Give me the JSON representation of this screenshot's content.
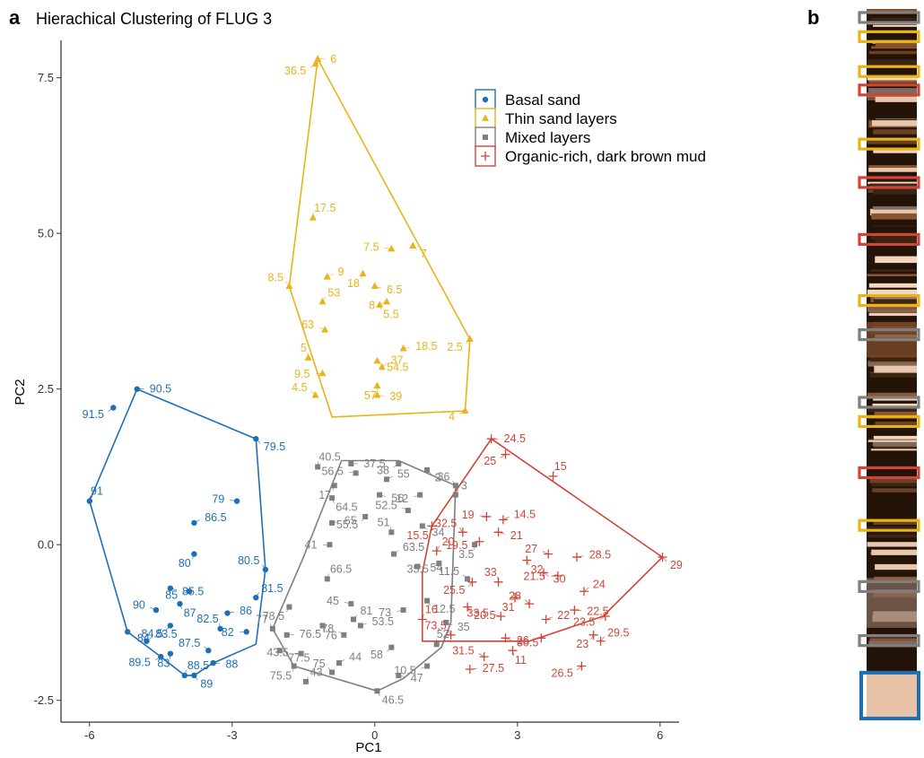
{
  "panel_a_letter": "a",
  "panel_b_letter": "b",
  "chart_data": {
    "type": "scatter",
    "title": "Hierachical Clustering of FLUG 3",
    "xlabel": "PC1",
    "ylabel": "PC2",
    "xlim": [
      -6.6,
      6.4
    ],
    "ylim": [
      -2.85,
      8.1
    ],
    "xticks": [
      -6,
      -3,
      0,
      3,
      6
    ],
    "xtick_labels": [
      "-6",
      "-3",
      "0",
      "3",
      "6"
    ],
    "yticks": [
      -2.5,
      0,
      2.5,
      5,
      7.5
    ],
    "ytick_labels": [
      "-2.5",
      "0.0",
      "2.5",
      "5.0",
      "7.5"
    ],
    "grid": false,
    "legend_position": "top-right",
    "series": [
      {
        "name": "Basal sand",
        "color": "#1f6fb5",
        "marker": "circle",
        "hull": [
          [
            -6.0,
            0.7
          ],
          [
            -5.0,
            2.5
          ],
          [
            -2.5,
            1.7
          ],
          [
            -2.3,
            -0.4
          ],
          [
            -2.5,
            -1.6
          ],
          [
            -3.4,
            -1.9
          ],
          [
            -3.8,
            -2.1
          ],
          [
            -4.0,
            -2.1
          ],
          [
            -4.5,
            -1.8
          ],
          [
            -5.2,
            -1.4
          ]
        ],
        "points": [
          {
            "label": "90.5",
            "x": -5.0,
            "y": 2.5
          },
          {
            "label": "91.5",
            "x": -5.5,
            "y": 2.2
          },
          {
            "label": "91",
            "x": -6.0,
            "y": 0.7
          },
          {
            "label": "79.5",
            "x": -2.5,
            "y": 1.7
          },
          {
            "label": "79",
            "x": -2.9,
            "y": 0.7
          },
          {
            "label": "86.5",
            "x": -3.8,
            "y": 0.35
          },
          {
            "label": "80",
            "x": -3.8,
            "y": -0.15
          },
          {
            "label": "80.5",
            "x": -2.3,
            "y": -0.4
          },
          {
            "label": "85.5",
            "x": -4.3,
            "y": -0.7
          },
          {
            "label": "85",
            "x": -3.9,
            "y": -0.75
          },
          {
            "label": "81.5",
            "x": -2.5,
            "y": -0.85
          },
          {
            "label": "87",
            "x": -4.1,
            "y": -0.95
          },
          {
            "label": "90",
            "x": -4.6,
            "y": -1.05
          },
          {
            "label": "86",
            "x": -3.1,
            "y": -1.1
          },
          {
            "label": "84.5",
            "x": -4.3,
            "y": -1.3
          },
          {
            "label": "82.5",
            "x": -3.25,
            "y": -1.35
          },
          {
            "label": "84",
            "x": -5.2,
            "y": -1.4
          },
          {
            "label": "82",
            "x": -2.7,
            "y": -1.4
          },
          {
            "label": "83.5",
            "x": -4.8,
            "y": -1.55
          },
          {
            "label": "83",
            "x": -4.3,
            "y": -1.75
          },
          {
            "label": "87.5",
            "x": -3.5,
            "y": -1.7
          },
          {
            "label": "88",
            "x": -3.4,
            "y": -1.9
          },
          {
            "label": "89.5",
            "x": -4.5,
            "y": -1.8
          },
          {
            "label": "88.5",
            "x": -4.0,
            "y": -2.1
          },
          {
            "label": "89",
            "x": -3.8,
            "y": -2.1
          }
        ]
      },
      {
        "name": "Thin sand layers",
        "color": "#e8b418",
        "marker": "triangle",
        "hull": [
          [
            -1.2,
            7.8
          ],
          [
            2.0,
            3.3
          ],
          [
            1.9,
            2.15
          ],
          [
            -0.9,
            2.05
          ],
          [
            -1.8,
            4.15
          ]
        ],
        "points": [
          {
            "label": "6",
            "x": -1.2,
            "y": 7.8
          },
          {
            "label": "36.5",
            "x": -1.25,
            "y": 7.72
          },
          {
            "label": "17.5",
            "x": -1.3,
            "y": 5.25
          },
          {
            "label": "7",
            "x": 0.8,
            "y": 4.8
          },
          {
            "label": "7.5",
            "x": 0.35,
            "y": 4.75
          },
          {
            "label": "9",
            "x": -1.0,
            "y": 4.3
          },
          {
            "label": "18",
            "x": -0.25,
            "y": 4.35
          },
          {
            "label": "8.5",
            "x": -1.8,
            "y": 4.15
          },
          {
            "label": "6.5",
            "x": 0.0,
            "y": 4.15
          },
          {
            "label": "8",
            "x": 0.25,
            "y": 3.9
          },
          {
            "label": "53",
            "x": -1.1,
            "y": 3.9
          },
          {
            "label": "5.5",
            "x": 0.1,
            "y": 3.85
          },
          {
            "label": "63",
            "x": -1.05,
            "y": 3.45
          },
          {
            "label": "18.5",
            "x": 0.6,
            "y": 3.15
          },
          {
            "label": "2.5",
            "x": 2.0,
            "y": 3.3
          },
          {
            "label": "5",
            "x": -1.4,
            "y": 3.0
          },
          {
            "label": "54.5",
            "x": 0.05,
            "y": 2.95
          },
          {
            "label": "9.5",
            "x": -1.1,
            "y": 2.75
          },
          {
            "label": "37",
            "x": 0.15,
            "y": 2.85
          },
          {
            "label": "57",
            "x": 0.05,
            "y": 2.55
          },
          {
            "label": "4.5",
            "x": -1.25,
            "y": 2.4
          },
          {
            "label": "39",
            "x": 0.05,
            "y": 2.4
          },
          {
            "label": "4",
            "x": 1.9,
            "y": 2.15
          }
        ]
      },
      {
        "name": "Mixed layers",
        "color": "#7f7f7f",
        "marker": "square",
        "hull": [
          [
            -0.7,
            1.35
          ],
          [
            0.5,
            1.35
          ],
          [
            1.7,
            0.95
          ],
          [
            1.6,
            -1.25
          ],
          [
            1.4,
            -1.65
          ],
          [
            0.6,
            -2.15
          ],
          [
            0.05,
            -2.35
          ],
          [
            -1.7,
            -1.95
          ],
          [
            -2.15,
            -1.35
          ],
          [
            -1.5,
            -0.2
          ]
        ],
        "points": [
          {
            "label": "37.5",
            "x": -0.5,
            "y": 1.3
          },
          {
            "label": "38",
            "x": 0.5,
            "y": 1.3
          },
          {
            "label": "40.5",
            "x": -1.2,
            "y": 1.25
          },
          {
            "label": "2",
            "x": 1.1,
            "y": 1.2
          },
          {
            "label": "56.5",
            "x": -0.4,
            "y": 1.15
          },
          {
            "label": "55",
            "x": 0.25,
            "y": 1.05
          },
          {
            "label": "17",
            "x": -0.85,
            "y": 0.95
          },
          {
            "label": "36",
            "x": 1.7,
            "y": 0.95
          },
          {
            "label": "56",
            "x": 0.1,
            "y": 0.8
          },
          {
            "label": "12",
            "x": 0.95,
            "y": 0.8
          },
          {
            "label": "3",
            "x": 1.7,
            "y": 0.8
          },
          {
            "label": "64.5",
            "x": -0.9,
            "y": 0.75
          },
          {
            "label": "52.5",
            "x": 0.7,
            "y": 0.55
          },
          {
            "label": "65",
            "x": -0.9,
            "y": 0.35
          },
          {
            "label": "55.5",
            "x": -0.2,
            "y": 0.45
          },
          {
            "label": "51",
            "x": 0.35,
            "y": 0.2
          },
          {
            "label": "34",
            "x": 1.0,
            "y": 0.3
          },
          {
            "label": "41",
            "x": -0.95,
            "y": 0.0
          },
          {
            "label": "63.5",
            "x": 0.4,
            "y": -0.15
          },
          {
            "label": "3.5",
            "x": 2.1,
            "y": 0.0
          },
          {
            "label": "11.5",
            "x": 1.95,
            "y": -0.55
          },
          {
            "label": "54",
            "x": 0.9,
            "y": -0.35
          },
          {
            "label": "35.5",
            "x": 1.35,
            "y": -0.3
          },
          {
            "label": "66.5",
            "x": -1.0,
            "y": -0.55
          },
          {
            "label": "12.5",
            "x": 1.1,
            "y": -0.9
          },
          {
            "label": "45",
            "x": -0.5,
            "y": -0.95
          },
          {
            "label": "53.5",
            "x": -0.3,
            "y": -1.3
          },
          {
            "label": "78.5",
            "x": -1.8,
            "y": -1.0
          },
          {
            "label": "77",
            "x": -2.15,
            "y": -1.35
          },
          {
            "label": "35",
            "x": 1.5,
            "y": -1.25
          },
          {
            "label": "73",
            "x": 0.6,
            "y": -1.05
          },
          {
            "label": "81",
            "x": -0.45,
            "y": -1.2
          },
          {
            "label": "76",
            "x": -1.1,
            "y": -1.3
          },
          {
            "label": "78",
            "x": -0.65,
            "y": -1.45
          },
          {
            "label": "76.5",
            "x": -1.85,
            "y": -1.45
          },
          {
            "label": "58",
            "x": 0.35,
            "y": -1.65
          },
          {
            "label": "52",
            "x": 1.3,
            "y": -1.6
          },
          {
            "label": "77.5",
            "x": -2.0,
            "y": -1.7
          },
          {
            "label": "43.5",
            "x": -1.55,
            "y": -1.75
          },
          {
            "label": "44",
            "x": -0.75,
            "y": -1.9
          },
          {
            "label": "75.5",
            "x": -1.7,
            "y": -1.95
          },
          {
            "label": "75",
            "x": -0.9,
            "y": -2.05
          },
          {
            "label": "47",
            "x": 0.5,
            "y": -2.1
          },
          {
            "label": "10.5",
            "x": 1.1,
            "y": -1.95
          },
          {
            "label": "43",
            "x": -1.45,
            "y": -2.2
          },
          {
            "label": "46.5",
            "x": 0.05,
            "y": -2.35
          }
        ]
      },
      {
        "name": "Organic-rich, dark brown mud",
        "color": "#d0453a",
        "marker": "plus",
        "hull": [
          [
            2.45,
            1.7
          ],
          [
            6.05,
            -0.2
          ],
          [
            4.8,
            -1.15
          ],
          [
            3.25,
            -1.55
          ],
          [
            2.8,
            -1.55
          ],
          [
            1.0,
            -1.55
          ],
          [
            1.0,
            -0.45
          ],
          [
            1.2,
            0.3
          ]
        ],
        "points": [
          {
            "label": "24.5",
            "x": 2.45,
            "y": 1.7
          },
          {
            "label": "25",
            "x": 2.75,
            "y": 1.45
          },
          {
            "label": "15",
            "x": 3.75,
            "y": 1.1
          },
          {
            "label": "29",
            "x": 6.05,
            "y": -0.2
          },
          {
            "label": "19",
            "x": 2.35,
            "y": 0.45
          },
          {
            "label": "14.5",
            "x": 2.7,
            "y": 0.4
          },
          {
            "label": "15.5",
            "x": 1.2,
            "y": 0.3
          },
          {
            "label": "32.5",
            "x": 1.85,
            "y": 0.2
          },
          {
            "label": "21",
            "x": 2.6,
            "y": 0.2
          },
          {
            "label": "19.5",
            "x": 2.2,
            "y": 0.05
          },
          {
            "label": "20",
            "x": 1.3,
            "y": -0.1
          },
          {
            "label": "32",
            "x": 3.2,
            "y": -0.25
          },
          {
            "label": "27",
            "x": 3.65,
            "y": -0.15
          },
          {
            "label": "28.5",
            "x": 4.25,
            "y": -0.2
          },
          {
            "label": "25.5",
            "x": 2.05,
            "y": -0.6
          },
          {
            "label": "33",
            "x": 2.6,
            "y": -0.6
          },
          {
            "label": "30",
            "x": 3.55,
            "y": -0.45
          },
          {
            "label": "21.5",
            "x": 3.85,
            "y": -0.5
          },
          {
            "label": "24",
            "x": 4.4,
            "y": -0.75
          },
          {
            "label": "31",
            "x": 2.95,
            "y": -0.85
          },
          {
            "label": "28",
            "x": 3.25,
            "y": -0.95
          },
          {
            "label": "22.5",
            "x": 4.2,
            "y": -1.05
          },
          {
            "label": "23.5",
            "x": 4.85,
            "y": -1.15
          },
          {
            "label": "16",
            "x": 1.0,
            "y": -1.2
          },
          {
            "label": "20.5",
            "x": 1.95,
            "y": -1.0
          },
          {
            "label": "33.5",
            "x": 2.65,
            "y": -1.15
          },
          {
            "label": "22",
            "x": 3.6,
            "y": -1.2
          },
          {
            "label": "23",
            "x": 4.6,
            "y": -1.45
          },
          {
            "label": "73.5",
            "x": 1.6,
            "y": -1.45
          },
          {
            "label": "30.5",
            "x": 2.75,
            "y": -1.5
          },
          {
            "label": "26",
            "x": 3.5,
            "y": -1.5
          },
          {
            "label": "29.5",
            "x": 4.75,
            "y": -1.55
          },
          {
            "label": "11",
            "x": 2.9,
            "y": -1.7
          },
          {
            "label": "31.5",
            "x": 2.3,
            "y": -1.8
          },
          {
            "label": "27.5",
            "x": 2.0,
            "y": -2.0
          },
          {
            "label": "26.5",
            "x": 4.35,
            "y": -1.95
          }
        ]
      }
    ]
  },
  "core_strip": {
    "sediment_colors": [
      "#231407",
      "#3b2513",
      "#6a4126",
      "#8a5533",
      "#e9c7ad",
      "#f2d6c0",
      "#7d6c61"
    ],
    "boxes": [
      {
        "cluster": "Mixed layers",
        "level": 0.005
      },
      {
        "cluster": "Thin sand layers",
        "level": 0.032
      },
      {
        "cluster": "Thin sand layers",
        "level": 0.081
      },
      {
        "cluster": "Organic-rich, dark brown mud",
        "level": 0.107
      },
      {
        "cluster": "Thin sand layers",
        "level": 0.183
      },
      {
        "cluster": "Organic-rich, dark brown mud",
        "level": 0.237
      },
      {
        "cluster": "Organic-rich, dark brown mud",
        "level": 0.317
      },
      {
        "cluster": "Thin sand layers",
        "level": 0.403
      },
      {
        "cluster": "Mixed layers",
        "level": 0.451
      },
      {
        "cluster": "Mixed layers",
        "level": 0.546
      },
      {
        "cluster": "Thin sand layers",
        "level": 0.573
      },
      {
        "cluster": "Organic-rich, dark brown mud",
        "level": 0.645
      },
      {
        "cluster": "Thin sand layers",
        "level": 0.719
      },
      {
        "cluster": "Mixed layers",
        "level": 0.805
      },
      {
        "cluster": "Mixed layers",
        "level": 0.881
      }
    ],
    "basal_box": {
      "cluster": "Basal sand",
      "from": 0.933,
      "to": 1.0
    }
  }
}
